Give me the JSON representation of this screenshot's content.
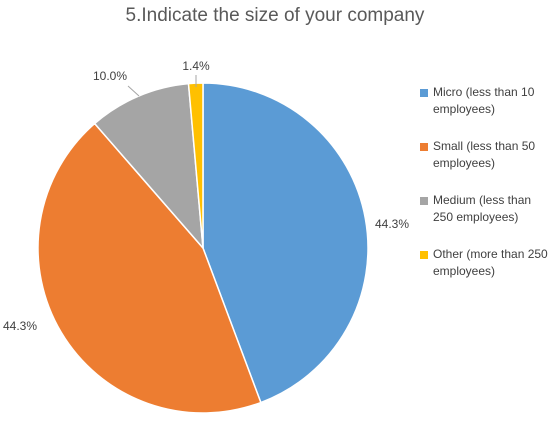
{
  "chart_data": {
    "type": "pie",
    "title": "5.Indicate the size of your company",
    "legend_position": "right",
    "slices": [
      {
        "label": "Micro (less than 10 employees)",
        "value": 44.3,
        "value_label": "44.3%",
        "color": "#5B9BD5"
      },
      {
        "label": "Small (less than 50 employees)",
        "value": 44.3,
        "value_label": "44.3%",
        "color": "#ED7D31"
      },
      {
        "label": "Medium (less than 250 employees)",
        "value": 10.0,
        "value_label": "10.0%",
        "color": "#A5A5A5"
      },
      {
        "label": "Other (more than 250 employees)",
        "value": 1.4,
        "value_label": "1.4%",
        "color": "#FFC000"
      }
    ]
  }
}
